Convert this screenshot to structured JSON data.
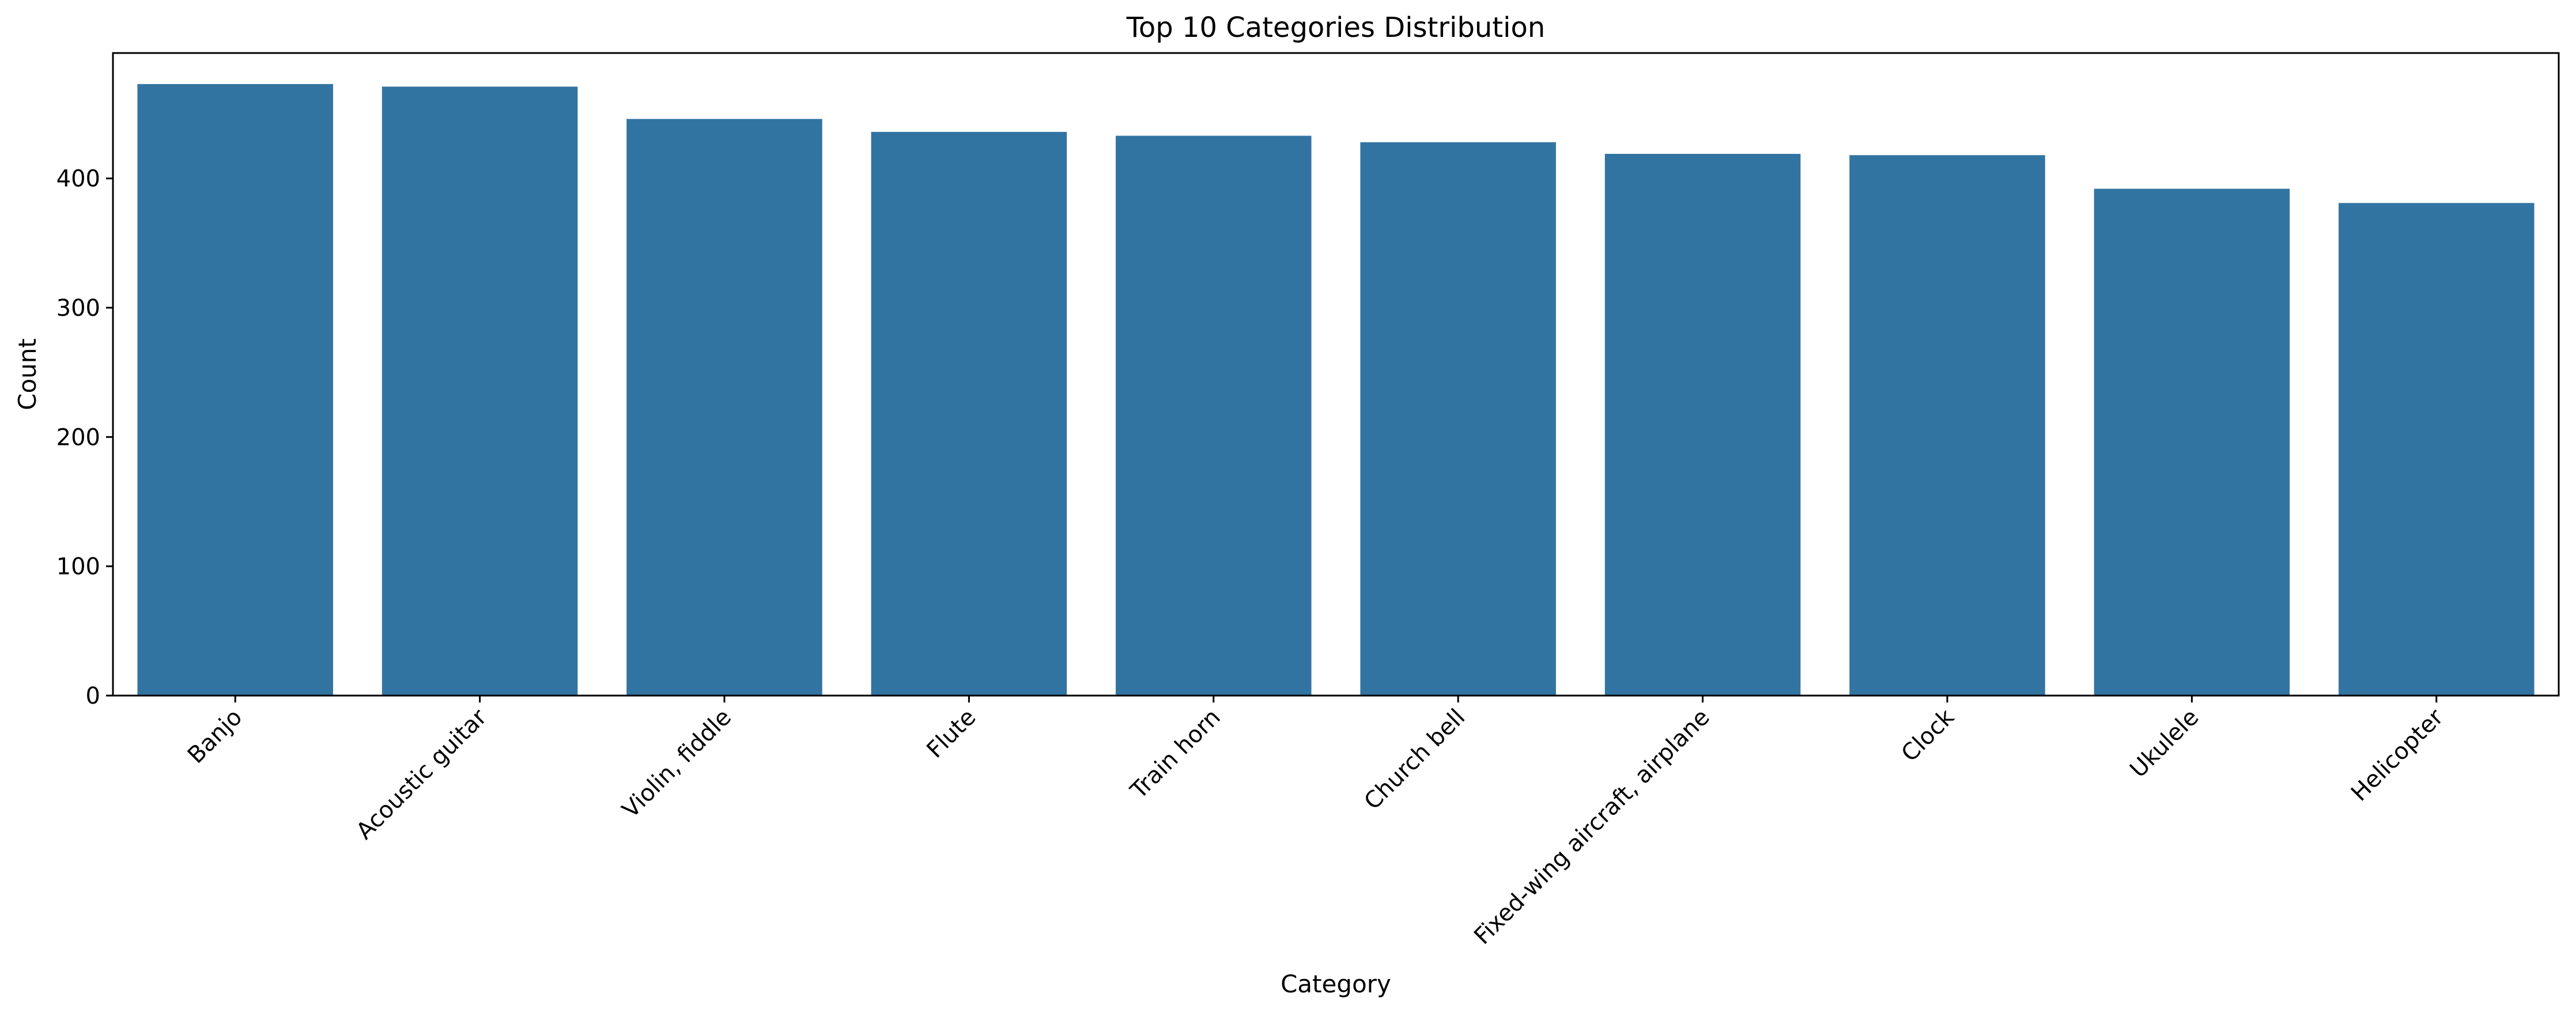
{
  "chart_data": {
    "type": "bar",
    "title": "Top 10 Categories Distribution",
    "xlabel": "Category",
    "ylabel": "Count",
    "categories": [
      "Banjo",
      "Acoustic guitar",
      "Violin, fiddle",
      "Flute",
      "Train horn",
      "Church bell",
      "Fixed-wing aircraft, airplane",
      "Clock",
      "Ukulele",
      "Helicopter"
    ],
    "values": [
      473,
      471,
      446,
      436,
      433,
      428,
      419,
      418,
      392,
      381
    ],
    "ylim": [
      0,
      497
    ],
    "yticks": [
      "0",
      "100",
      "200",
      "300",
      "400"
    ],
    "grid": false,
    "legend": "none",
    "bar_color": "#3274a1"
  }
}
